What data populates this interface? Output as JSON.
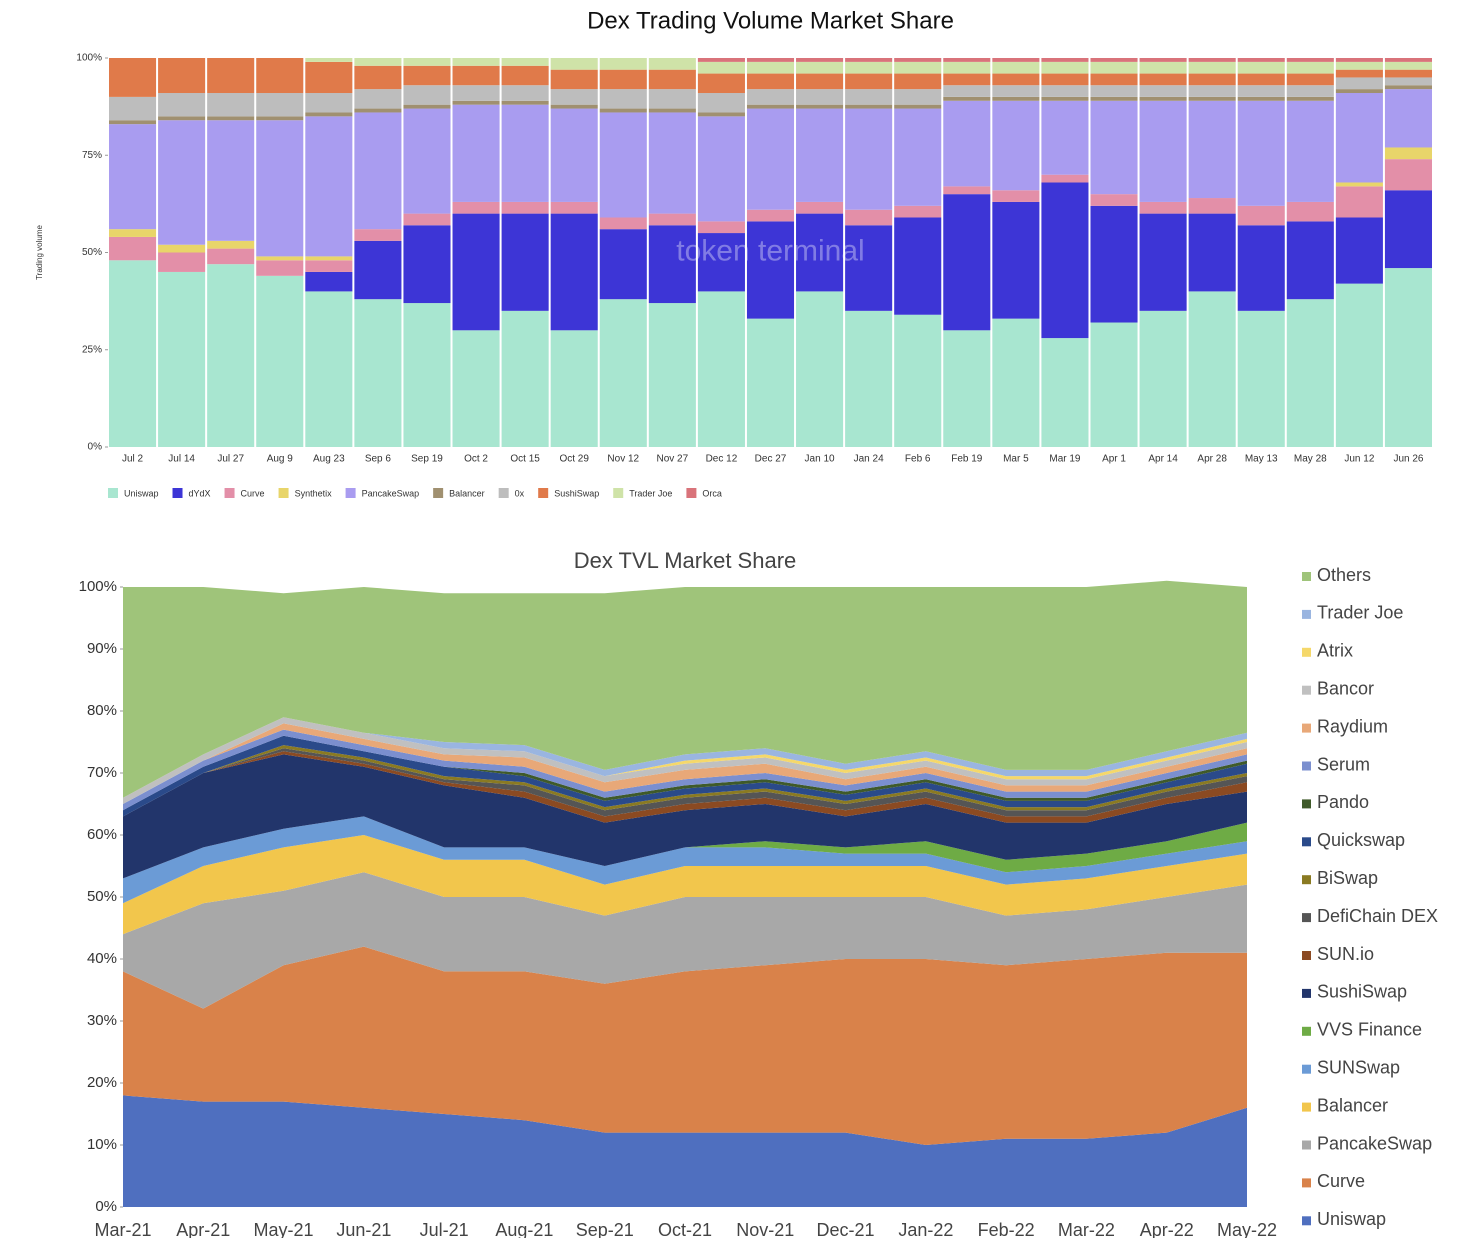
{
  "chart_data": [
    {
      "type": "bar",
      "stacked": true,
      "title": "Dex Trading Volume Market Share",
      "ylabel": "Trading volume",
      "watermark": "token terminal",
      "legend": "bottom",
      "categories": [
        "Jul 2",
        "Jul 14",
        "Jul 27",
        "Aug 9",
        "Aug 23",
        "Sep 6",
        "Sep 19",
        "Oct 2",
        "Oct 15",
        "Oct 29",
        "Nov 12",
        "Nov 27",
        "Dec 12",
        "Dec 27",
        "Jan 10",
        "Jan 24",
        "Feb 6",
        "Feb 19",
        "Mar 5",
        "Mar 19",
        "Apr 1",
        "Apr 14",
        "Apr 28",
        "May 13",
        "May 28",
        "Jun 12",
        "Jun 26"
      ],
      "ylim": [
        0,
        100
      ],
      "yticks": [
        {
          "value": 0,
          "label": "0%"
        },
        {
          "value": 25,
          "label": "25%"
        },
        {
          "value": 50,
          "label": "50%"
        },
        {
          "value": 75,
          "label": "75%"
        },
        {
          "value": 100,
          "label": "100%"
        }
      ],
      "series": [
        {
          "name": "Uniswap",
          "color": "#a8e6d0",
          "values": [
            48,
            45,
            47,
            44,
            40,
            38,
            37,
            30,
            35,
            30,
            38,
            37,
            40,
            33,
            40,
            35,
            34,
            30,
            33,
            28,
            32,
            35,
            40,
            35,
            38,
            42,
            46
          ]
        },
        {
          "name": "dYdX",
          "color": "#3d35d6",
          "values": [
            0,
            0,
            0,
            0,
            5,
            15,
            20,
            30,
            25,
            30,
            18,
            20,
            15,
            25,
            20,
            22,
            25,
            35,
            30,
            40,
            30,
            25,
            20,
            22,
            20,
            17,
            20
          ]
        },
        {
          "name": "Curve",
          "color": "#e38fa8",
          "values": [
            6,
            5,
            4,
            4,
            3,
            3,
            3,
            3,
            3,
            3,
            3,
            3,
            3,
            3,
            3,
            4,
            3,
            2,
            3,
            2,
            3,
            3,
            4,
            5,
            5,
            8,
            8
          ]
        },
        {
          "name": "Synthetix",
          "color": "#e8d56a",
          "values": [
            2,
            2,
            2,
            1,
            1,
            0,
            0,
            0,
            0,
            0,
            0,
            0,
            0,
            0,
            0,
            0,
            0,
            0,
            0,
            0,
            0,
            0,
            0,
            0,
            0,
            1,
            3
          ]
        },
        {
          "name": "PancakeSwap",
          "color": "#a99cf0",
          "values": [
            27,
            32,
            31,
            35,
            36,
            30,
            27,
            25,
            25,
            24,
            27,
            26,
            27,
            26,
            24,
            26,
            25,
            22,
            23,
            19,
            24,
            26,
            25,
            27,
            26,
            23,
            15
          ]
        },
        {
          "name": "Balancer",
          "color": "#a09070",
          "values": [
            1,
            1,
            1,
            1,
            1,
            1,
            1,
            1,
            1,
            1,
            1,
            1,
            1,
            1,
            1,
            1,
            1,
            1,
            1,
            1,
            1,
            1,
            1,
            1,
            1,
            1,
            1
          ]
        },
        {
          "name": "0x",
          "color": "#bdbdbd",
          "values": [
            6,
            6,
            6,
            6,
            5,
            5,
            5,
            4,
            4,
            4,
            5,
            5,
            5,
            4,
            4,
            4,
            4,
            3,
            3,
            3,
            3,
            3,
            3,
            3,
            3,
            3,
            2
          ]
        },
        {
          "name": "SushiSwap",
          "color": "#e07a4a",
          "values": [
            10,
            9,
            9,
            9,
            8,
            6,
            5,
            5,
            5,
            5,
            5,
            5,
            5,
            4,
            4,
            4,
            4,
            3,
            3,
            3,
            3,
            3,
            3,
            3,
            3,
            2,
            2
          ]
        },
        {
          "name": "Trader Joe",
          "color": "#cfe3a8",
          "values": [
            0,
            0,
            0,
            0,
            1,
            2,
            2,
            2,
            2,
            3,
            3,
            3,
            3,
            3,
            3,
            3,
            3,
            3,
            3,
            3,
            3,
            3,
            3,
            3,
            3,
            2,
            2
          ]
        },
        {
          "name": "Orca",
          "color": "#d9737a",
          "values": [
            0,
            0,
            0,
            0,
            0,
            0,
            0,
            0,
            0,
            0,
            0,
            0,
            1,
            1,
            1,
            1,
            1,
            1,
            1,
            1,
            1,
            1,
            1,
            1,
            1,
            1,
            1
          ]
        }
      ]
    },
    {
      "type": "area",
      "stacked": true,
      "title": "Dex TVL Market Share",
      "legend": "right",
      "categories": [
        "Mar-21",
        "Apr-21",
        "May-21",
        "Jun-21",
        "Jul-21",
        "Aug-21",
        "Sep-21",
        "Oct-21",
        "Nov-21",
        "Dec-21",
        "Jan-22",
        "Feb-22",
        "Mar-22",
        "Apr-22",
        "May-22"
      ],
      "ylim": [
        0,
        100
      ],
      "yticks": [
        {
          "value": 0,
          "label": "0%"
        },
        {
          "value": 10,
          "label": "10%"
        },
        {
          "value": 20,
          "label": "20%"
        },
        {
          "value": 30,
          "label": "30%"
        },
        {
          "value": 40,
          "label": "40%"
        },
        {
          "value": 50,
          "label": "50%"
        },
        {
          "value": 60,
          "label": "60%"
        },
        {
          "value": 70,
          "label": "70%"
        },
        {
          "value": 80,
          "label": "80%"
        },
        {
          "value": 90,
          "label": "90%"
        },
        {
          "value": 100,
          "label": "100%"
        }
      ],
      "series": [
        {
          "name": "Uniswap",
          "color": "#4f6fbf",
          "values": [
            18,
            17,
            17,
            16,
            15,
            14,
            12,
            12,
            12,
            12,
            10,
            11,
            11,
            12,
            16
          ]
        },
        {
          "name": "Curve",
          "color": "#d9824a",
          "values": [
            20,
            15,
            22,
            26,
            23,
            24,
            24,
            26,
            27,
            28,
            30,
            28,
            29,
            29,
            25
          ]
        },
        {
          "name": "PancakeSwap",
          "color": "#a8a8a8",
          "values": [
            6,
            17,
            12,
            12,
            12,
            12,
            11,
            12,
            11,
            10,
            10,
            8,
            8,
            9,
            11
          ]
        },
        {
          "name": "Balancer",
          "color": "#f2c64c",
          "values": [
            5,
            6,
            7,
            6,
            6,
            6,
            5,
            5,
            5,
            5,
            5,
            5,
            5,
            5,
            5
          ]
        },
        {
          "name": "SUNSwap",
          "color": "#6b9bd6",
          "values": [
            4,
            3,
            3,
            3,
            2,
            2,
            3,
            3,
            3,
            2,
            2,
            2,
            2,
            2,
            2
          ]
        },
        {
          "name": "VVS Finance",
          "color": "#6eab45",
          "values": [
            0,
            0,
            0,
            0,
            0,
            0,
            0,
            0,
            1,
            1,
            2,
            2,
            2,
            2,
            3
          ]
        },
        {
          "name": "SushiSwap",
          "color": "#22356b",
          "values": [
            10,
            12,
            12,
            8,
            10,
            8,
            7,
            6,
            6,
            5,
            6,
            6,
            5,
            6,
            5
          ]
        },
        {
          "name": "SUN.io",
          "color": "#8b4a22",
          "values": [
            0,
            0,
            0.5,
            0.5,
            0.5,
            1,
            1,
            1,
            1,
            1,
            1,
            1,
            1,
            1,
            1.5
          ]
        },
        {
          "name": "DefiChain DEX",
          "color": "#555555",
          "values": [
            0,
            0,
            0.5,
            0.5,
            0.5,
            1,
            1,
            1,
            1,
            1,
            1,
            1,
            1,
            1,
            1
          ]
        },
        {
          "name": "BiSwap",
          "color": "#8a7a22",
          "values": [
            0,
            0,
            0.5,
            0.5,
            0.5,
            0.5,
            0.5,
            0.5,
            0.5,
            0.5,
            0.5,
            0.5,
            0.5,
            0.5,
            0.5
          ]
        },
        {
          "name": "Quickswap",
          "color": "#2a4a8a",
          "values": [
            1,
            1,
            1.5,
            1,
            1.5,
            1,
            1,
            1,
            1,
            1,
            1,
            1,
            1,
            1,
            1.5
          ]
        },
        {
          "name": "Pando",
          "color": "#3f5a2a",
          "values": [
            0,
            0,
            0,
            0,
            0,
            0.5,
            0.5,
            0.5,
            0.5,
            0.5,
            0.5,
            0.5,
            0.5,
            0.5,
            0.5
          ]
        },
        {
          "name": "Serum",
          "color": "#7b8fcf",
          "values": [
            1,
            1,
            1,
            1,
            1,
            1,
            1,
            1,
            1,
            1,
            1,
            1,
            1,
            1,
            1
          ]
        },
        {
          "name": "Raydium",
          "color": "#e8a878",
          "values": [
            0,
            0,
            1,
            1,
            1,
            1.5,
            1.5,
            1.5,
            1.5,
            1,
            1,
            1,
            1,
            1,
            1
          ]
        },
        {
          "name": "Bancor",
          "color": "#c0c0c0",
          "values": [
            1,
            1,
            1,
            1,
            1,
            1,
            1,
            1,
            1,
            1,
            1,
            1,
            1,
            1,
            1
          ]
        },
        {
          "name": "Atrix",
          "color": "#f5d86a",
          "values": [
            0,
            0,
            0,
            0,
            0,
            0,
            0,
            0.5,
            0.5,
            0.5,
            0.5,
            0.5,
            0.5,
            0.5,
            0.5
          ]
        },
        {
          "name": "Trader Joe",
          "color": "#9ab5e0",
          "values": [
            0,
            0,
            0,
            0,
            1,
            1,
            1,
            1,
            1,
            1,
            1,
            1,
            1,
            1,
            1
          ]
        },
        {
          "name": "Others",
          "color": "#9fc47a",
          "values": [
            34,
            27,
            20,
            23.5,
            24,
            24.5,
            28.5,
            27,
            26,
            28.5,
            26.5,
            29.5,
            29.5,
            27.5,
            23.5
          ]
        }
      ]
    }
  ]
}
